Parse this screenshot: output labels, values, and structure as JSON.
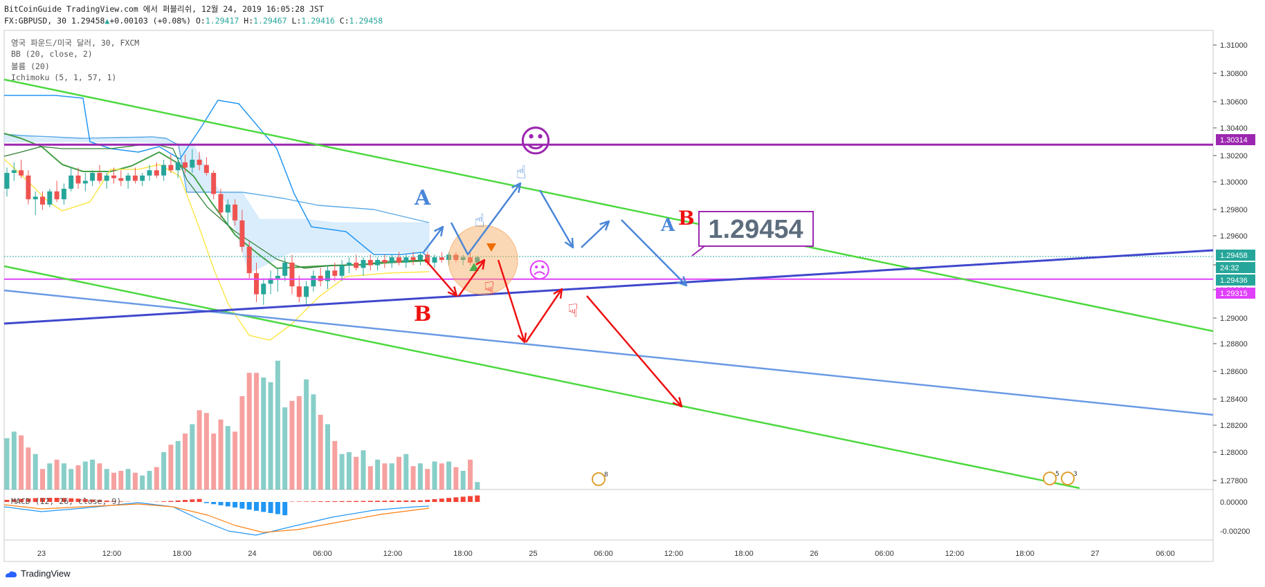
{
  "header": {
    "published_by": "BitCoinGuide TradingView.com 에서 퍼블리쉬, 12월 24, 2019 16:05:28 JST",
    "symbol": "FX:GBPUSD, 30",
    "last": "1.29458",
    "change": "+0.00103 (+0.08%)",
    "o_label": "O:",
    "o": "1.29417",
    "h_label": "H:",
    "h": "1.29467",
    "l_label": "L:",
    "l": "1.29416",
    "c_label": "C:",
    "c": "1.29458"
  },
  "legend": {
    "title": "영국 파운드/미국 달러, 30, FXCM",
    "bb": "BB (20, close, 2)",
    "volume": "볼륨 (20)",
    "ichimoku": "Ichimoku (5, 1, 57, 1)",
    "macd": "MACD (12, 26, close, 9)"
  },
  "footer": {
    "brand": "TradingView"
  },
  "colors": {
    "up": "#26a69a",
    "down": "#ef5350",
    "bb": "#2196f3",
    "trend_green": "#4cd93f",
    "purple_line": "#9c27b0",
    "magenta_line": "#e040fb",
    "blue_channel": "#3f48cc",
    "light_blue": "#6a9ae5",
    "arrow_blue": "#4a86d8",
    "arrow_red": "#ee1111",
    "cloud": "#bfe0f7",
    "sma": "#43a047",
    "lower_band": "#fbe64b",
    "price_tag": "#26a69a"
  },
  "chart_data": {
    "type": "candlestick",
    "instrument": "GBPUSD",
    "ylim": [
      1.277,
      1.3118
    ],
    "y_ticks": [
      "1.31000",
      "1.30800",
      "1.30600",
      "1.30400",
      "1.30200",
      "1.30000",
      "1.29800",
      "1.29600",
      "1.29400",
      "1.29200",
      "1.29000",
      "1.28800",
      "1.28600",
      "1.28400",
      "1.28200",
      "1.28000",
      "1.27800"
    ],
    "x_ticks": [
      "23",
      "12:00",
      "18:00",
      "24",
      "06:00",
      "12:00",
      "18:00",
      "25",
      "06:00",
      "12:00",
      "18:00",
      "26",
      "06:00",
      "12:00",
      "18:00",
      "27",
      "06:00"
    ],
    "price_labels": [
      {
        "value": "1.30314",
        "color": "#9c27b0",
        "level": 1.30314
      },
      {
        "value": "1.29458",
        "color": "#26a69a",
        "level": 1.29458
      },
      {
        "value": "24:32",
        "color": "#26a69a",
        "level": 1.29396
      },
      {
        "value": "1.29436",
        "color": "#26a69a",
        "level": 1.29334
      },
      {
        "value": "1.29315",
        "color": "#e040fb",
        "level": 1.2919
      }
    ],
    "macd_ticks": [
      "0.00000",
      "-0.00200"
    ],
    "annotations": {
      "price_callout": "1.29454",
      "letters": [
        "A",
        "B",
        "A",
        "B"
      ],
      "smiley_happy": "☺",
      "smiley_sad": "☹",
      "event_badges": [
        "8",
        "5",
        "3"
      ]
    },
    "horizontal_levels": [
      1.30314,
      1.29436,
      1.29458
    ],
    "candles": [
      {
        "o": 1.2998,
        "h": 1.3014,
        "l": 1.2992,
        "c": 1.301
      },
      {
        "o": 1.301,
        "h": 1.3018,
        "l": 1.3004,
        "c": 1.3012
      },
      {
        "o": 1.3012,
        "h": 1.302,
        "l": 1.3006,
        "c": 1.3008
      },
      {
        "o": 1.3008,
        "h": 1.3012,
        "l": 1.2986,
        "c": 1.299
      },
      {
        "o": 1.299,
        "h": 1.2996,
        "l": 1.2978,
        "c": 1.2992
      },
      {
        "o": 1.2992,
        "h": 1.2996,
        "l": 1.2982,
        "c": 1.2986
      },
      {
        "o": 1.2986,
        "h": 1.2998,
        "l": 1.2984,
        "c": 1.2996
      },
      {
        "o": 1.2996,
        "h": 1.3004,
        "l": 1.2988,
        "c": 1.299
      },
      {
        "o": 1.299,
        "h": 1.3002,
        "l": 1.2986,
        "c": 1.2998
      },
      {
        "o": 1.2998,
        "h": 1.3014,
        "l": 1.2996,
        "c": 1.3008
      },
      {
        "o": 1.3008,
        "h": 1.3014,
        "l": 1.2998,
        "c": 1.3002
      },
      {
        "o": 1.3002,
        "h": 1.301,
        "l": 1.2996,
        "c": 1.3004
      },
      {
        "o": 1.3004,
        "h": 1.3012,
        "l": 1.3,
        "c": 1.301
      },
      {
        "o": 1.301,
        "h": 1.3016,
        "l": 1.3002,
        "c": 1.3004
      },
      {
        "o": 1.3004,
        "h": 1.301,
        "l": 1.2998,
        "c": 1.3008
      },
      {
        "o": 1.3008,
        "h": 1.3014,
        "l": 1.3002,
        "c": 1.3006
      },
      {
        "o": 1.3006,
        "h": 1.3012,
        "l": 1.3,
        "c": 1.3004
      },
      {
        "o": 1.3004,
        "h": 1.301,
        "l": 1.2998,
        "c": 1.3008
      },
      {
        "o": 1.3008,
        "h": 1.3014,
        "l": 1.3002,
        "c": 1.3004
      },
      {
        "o": 1.3004,
        "h": 1.301,
        "l": 1.3,
        "c": 1.3008
      },
      {
        "o": 1.3008,
        "h": 1.3016,
        "l": 1.3004,
        "c": 1.3012
      },
      {
        "o": 1.3012,
        "h": 1.3018,
        "l": 1.3006,
        "c": 1.3008
      },
      {
        "o": 1.3008,
        "h": 1.302,
        "l": 1.3004,
        "c": 1.3016
      },
      {
        "o": 1.3016,
        "h": 1.3024,
        "l": 1.301,
        "c": 1.3012
      },
      {
        "o": 1.3012,
        "h": 1.3022,
        "l": 1.3006,
        "c": 1.3018
      },
      {
        "o": 1.3018,
        "h": 1.3024,
        "l": 1.301,
        "c": 1.3014
      },
      {
        "o": 1.3014,
        "h": 1.3028,
        "l": 1.301,
        "c": 1.302
      },
      {
        "o": 1.302,
        "h": 1.3026,
        "l": 1.3012,
        "c": 1.3016
      },
      {
        "o": 1.3016,
        "h": 1.3022,
        "l": 1.3008,
        "c": 1.301
      },
      {
        "o": 1.301,
        "h": 1.3012,
        "l": 1.299,
        "c": 1.2994
      },
      {
        "o": 1.2994,
        "h": 1.2998,
        "l": 1.2976,
        "c": 1.298
      },
      {
        "o": 1.298,
        "h": 1.299,
        "l": 1.297,
        "c": 1.2986
      },
      {
        "o": 1.2986,
        "h": 1.299,
        "l": 1.297,
        "c": 1.2974
      },
      {
        "o": 1.2974,
        "h": 1.2982,
        "l": 1.295,
        "c": 1.2954
      },
      {
        "o": 1.2954,
        "h": 1.2958,
        "l": 1.293,
        "c": 1.2934
      },
      {
        "o": 1.2934,
        "h": 1.2942,
        "l": 1.2912,
        "c": 1.2918
      },
      {
        "o": 1.2918,
        "h": 1.293,
        "l": 1.291,
        "c": 1.2926
      },
      {
        "o": 1.2926,
        "h": 1.2936,
        "l": 1.2918,
        "c": 1.293
      },
      {
        "o": 1.293,
        "h": 1.2938,
        "l": 1.292,
        "c": 1.2932
      },
      {
        "o": 1.2932,
        "h": 1.2946,
        "l": 1.2928,
        "c": 1.2942
      },
      {
        "o": 1.2942,
        "h": 1.2948,
        "l": 1.2918,
        "c": 1.2924
      },
      {
        "o": 1.2924,
        "h": 1.2932,
        "l": 1.2912,
        "c": 1.2916
      },
      {
        "o": 1.2916,
        "h": 1.2928,
        "l": 1.291,
        "c": 1.2924
      },
      {
        "o": 1.2924,
        "h": 1.2936,
        "l": 1.292,
        "c": 1.2932
      },
      {
        "o": 1.2932,
        "h": 1.2938,
        "l": 1.2924,
        "c": 1.2928
      },
      {
        "o": 1.2928,
        "h": 1.294,
        "l": 1.2922,
        "c": 1.2936
      },
      {
        "o": 1.2936,
        "h": 1.2942,
        "l": 1.2928,
        "c": 1.2932
      },
      {
        "o": 1.2932,
        "h": 1.2944,
        "l": 1.2928,
        "c": 1.294
      },
      {
        "o": 1.294,
        "h": 1.2946,
        "l": 1.2934,
        "c": 1.2942
      },
      {
        "o": 1.2942,
        "h": 1.2948,
        "l": 1.2936,
        "c": 1.2938
      },
      {
        "o": 1.2938,
        "h": 1.2946,
        "l": 1.2932,
        "c": 1.2944
      },
      {
        "o": 1.2944,
        "h": 1.2948,
        "l": 1.2936,
        "c": 1.294
      },
      {
        "o": 1.294,
        "h": 1.2946,
        "l": 1.2936,
        "c": 1.2944
      },
      {
        "o": 1.2944,
        "h": 1.2948,
        "l": 1.2938,
        "c": 1.2942
      },
      {
        "o": 1.2942,
        "h": 1.2948,
        "l": 1.2938,
        "c": 1.2946
      },
      {
        "o": 1.2946,
        "h": 1.295,
        "l": 1.294,
        "c": 1.2942
      },
      {
        "o": 1.2942,
        "h": 1.2948,
        "l": 1.2938,
        "c": 1.2946
      },
      {
        "o": 1.2946,
        "h": 1.295,
        "l": 1.294,
        "c": 1.2944
      },
      {
        "o": 1.2944,
        "h": 1.295,
        "l": 1.294,
        "c": 1.2948
      },
      {
        "o": 1.2948,
        "h": 1.295,
        "l": 1.294,
        "c": 1.2942
      },
      {
        "o": 1.2942,
        "h": 1.2948,
        "l": 1.2938,
        "c": 1.2946
      },
      {
        "o": 1.2946,
        "h": 1.295,
        "l": 1.2942,
        "c": 1.2944
      },
      {
        "o": 1.2944,
        "h": 1.295,
        "l": 1.294,
        "c": 1.2948
      },
      {
        "o": 1.2948,
        "h": 1.295,
        "l": 1.2942,
        "c": 1.2944
      },
      {
        "o": 1.2944,
        "h": 1.2948,
        "l": 1.294,
        "c": 1.2946
      },
      {
        "o": 1.2946,
        "h": 1.295,
        "l": 1.294,
        "c": 1.2942
      },
      {
        "o": 1.2942,
        "h": 1.2947,
        "l": 1.2941,
        "c": 1.2946
      }
    ],
    "volumes": [
      55,
      62,
      58,
      45,
      38,
      22,
      28,
      32,
      28,
      22,
      26,
      30,
      32,
      28,
      22,
      18,
      20,
      22,
      18,
      15,
      20,
      24,
      40,
      48,
      52,
      60,
      70,
      85,
      82,
      60,
      75,
      68,
      62,
      100,
      125,
      125,
      120,
      115,
      138,
      88,
      95,
      100,
      118,
      102,
      80,
      70,
      52,
      38,
      40,
      35,
      42,
      25,
      32,
      28,
      28,
      35,
      38,
      25,
      28,
      22,
      30,
      28,
      30,
      24,
      20,
      32,
      8
    ]
  }
}
